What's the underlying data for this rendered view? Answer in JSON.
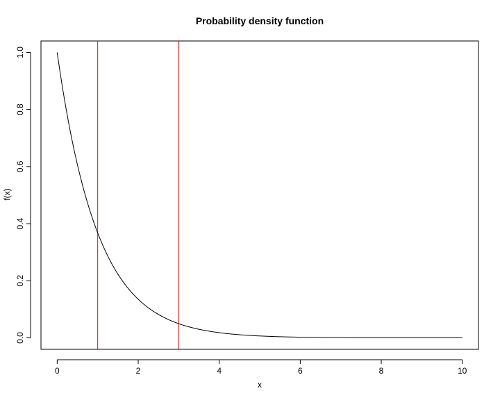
{
  "chart_data": {
    "type": "line",
    "title": "Probability density function",
    "xlabel": "x",
    "ylabel": "f(x)",
    "xlim": [
      -0.4,
      10.4
    ],
    "ylim": [
      -0.04,
      1.04
    ],
    "x_ticks": [
      0,
      2,
      4,
      6,
      8,
      10
    ],
    "x_tick_labels": [
      "0",
      "2",
      "4",
      "6",
      "8",
      "10"
    ],
    "y_ticks": [
      0.0,
      0.2,
      0.4,
      0.6,
      0.8,
      1.0
    ],
    "y_tick_labels": [
      "0.0",
      "0.2",
      "0.4",
      "0.6",
      "0.8",
      "1.0"
    ],
    "grid": false,
    "series": [
      {
        "function": "exp(-x)",
        "x_range": [
          0,
          10
        ],
        "color": "#000000",
        "x": [
          0,
          0.5,
          1,
          1.5,
          2,
          2.5,
          3,
          4,
          5,
          6,
          7,
          8,
          9,
          10
        ],
        "y": [
          1.0,
          0.607,
          0.368,
          0.223,
          0.135,
          0.082,
          0.05,
          0.018,
          0.007,
          0.002,
          0.001,
          0.0003,
          0.0001,
          5e-05
        ]
      }
    ],
    "vlines": [
      {
        "x": 1,
        "color": "#ff0000"
      },
      {
        "x": 3,
        "color": "#ff0000"
      }
    ]
  }
}
